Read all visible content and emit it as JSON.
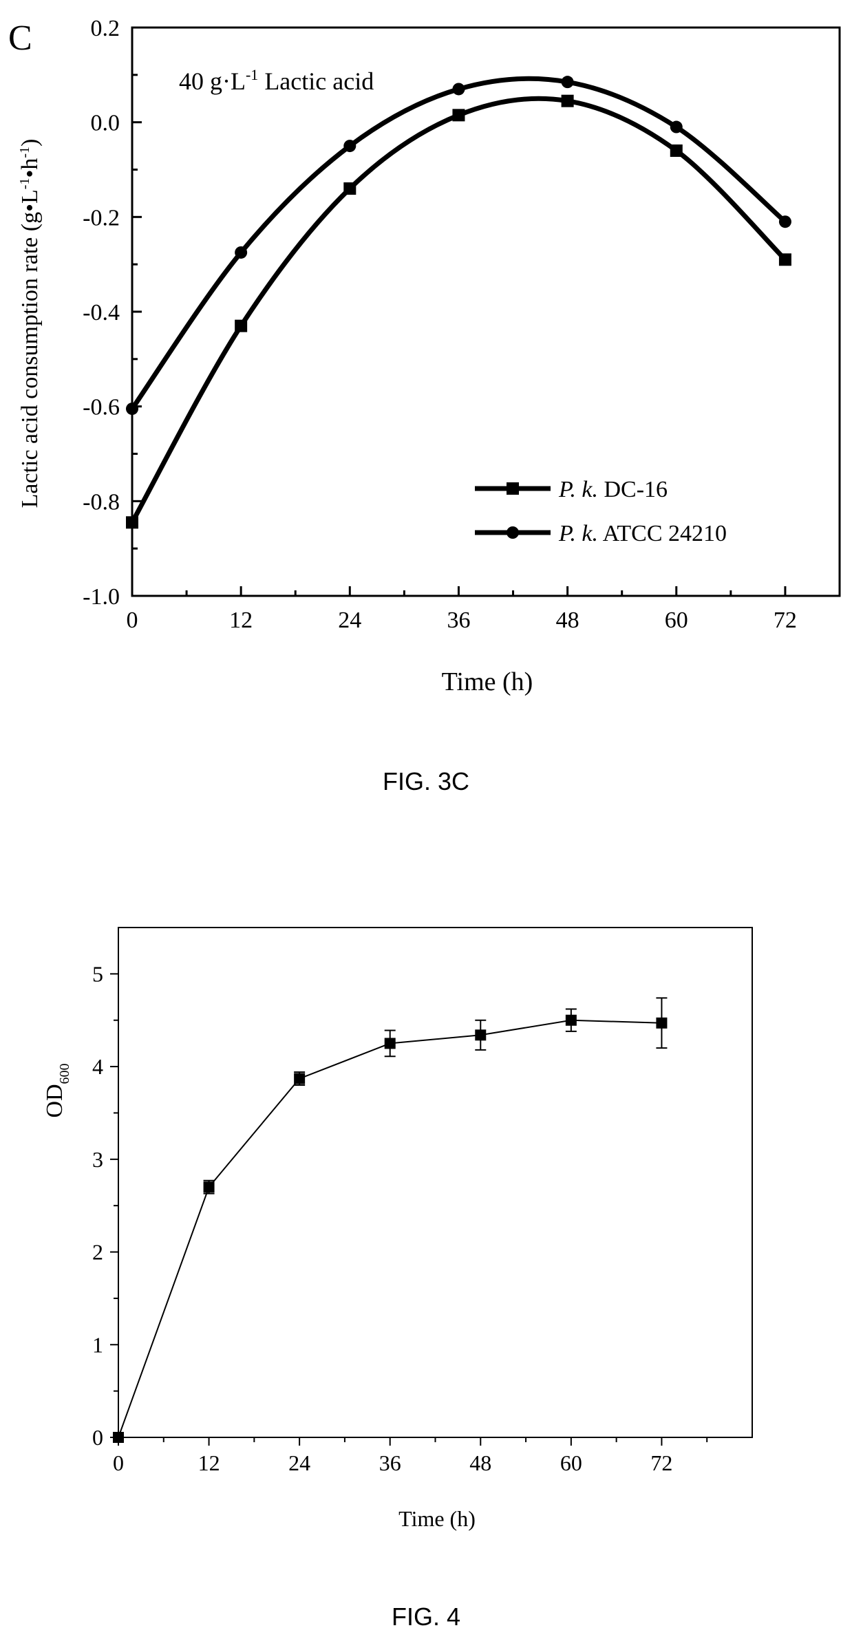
{
  "figures": [
    {
      "panel_letter": "C",
      "caption": "FIG. 3C",
      "annotation": {
        "pre": "40 g·L",
        "sup": "-1",
        "post": " Lactic acid"
      },
      "ylabel": {
        "main": "Lactic acid consumption rate (g•L",
        "sup1": "-1",
        "mid": "•h",
        "sup2": "-1",
        "end": ")"
      },
      "xlabel": "Time (h)"
    },
    {
      "caption": "FIG. 4",
      "ylabel": {
        "main": "OD",
        "sub": "600"
      },
      "xlabel": "Time (h)"
    }
  ],
  "chart_data": [
    {
      "type": "line",
      "title": "",
      "xlabel": "Time (h)",
      "ylabel": "Lactic acid consumption rate (g•L-1•h-1)",
      "x": [
        0,
        12,
        24,
        36,
        48,
        60,
        72
      ],
      "xticks": [
        "0",
        "12",
        "24",
        "36",
        "48",
        "60",
        "72"
      ],
      "yticks": [
        "-1.0",
        "-0.8",
        "-0.6",
        "-0.4",
        "-0.2",
        "0.0",
        "0.2"
      ],
      "xlim": [
        0,
        78
      ],
      "ylim": [
        -1.0,
        0.2
      ],
      "grid": false,
      "legend_position": "bottom-right",
      "smooth": true,
      "series": [
        {
          "name_italic": "P. k.",
          "name_rest": " DC-16",
          "marker": "square",
          "values": [
            -0.845,
            -0.43,
            -0.14,
            0.015,
            0.045,
            -0.06,
            -0.29
          ]
        },
        {
          "name_italic": "P. k.",
          "name_rest": " ATCC 24210",
          "marker": "circle",
          "values": [
            -0.605,
            -0.275,
            -0.05,
            0.07,
            0.085,
            -0.01,
            -0.21
          ]
        }
      ]
    },
    {
      "type": "line",
      "title": "",
      "xlabel": "Time (h)",
      "ylabel": "OD600",
      "x": [
        0,
        12,
        24,
        36,
        48,
        60,
        72
      ],
      "xticks": [
        "0",
        "12",
        "24",
        "36",
        "48",
        "60",
        "72"
      ],
      "yticks": [
        "0",
        "1",
        "2",
        "3",
        "4",
        "5"
      ],
      "xlim": [
        0,
        84
      ],
      "ylim": [
        0,
        5.5
      ],
      "grid": false,
      "series": [
        {
          "marker": "square",
          "values": [
            0,
            2.7,
            3.87,
            4.25,
            4.34,
            4.5,
            4.47
          ],
          "errors": [
            0,
            0.07,
            0.07,
            0.14,
            0.16,
            0.12,
            0.27
          ]
        }
      ]
    }
  ]
}
